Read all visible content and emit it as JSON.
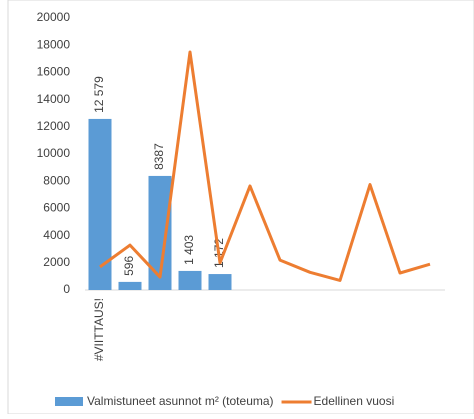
{
  "chart_data": {
    "type": "bar_line",
    "categories": [
      "#VIITTAUS!",
      null,
      null,
      null,
      null,
      null,
      null,
      null,
      null,
      null,
      null,
      null
    ],
    "series": [
      {
        "name": "Valmistuneet asunnot m² (toteuma)",
        "type": "bar",
        "color": "#5b9bd5",
        "values": [
          12579,
          596,
          8387,
          1403,
          1172,
          null,
          null,
          null,
          null,
          null,
          null,
          null
        ],
        "value_labels": [
          "12 579",
          "596",
          "8387",
          "1 403",
          "1 172",
          null,
          null,
          null,
          null,
          null,
          null,
          null
        ]
      },
      {
        "name": "Edellinen vuosi",
        "type": "line",
        "color": "#ed7d31",
        "values": [
          1700,
          3300,
          950,
          17500,
          2000,
          7650,
          2200,
          1300,
          700,
          7750,
          1250,
          1900
        ]
      }
    ],
    "ylim": [
      0,
      20000
    ],
    "yticks": [
      0,
      2000,
      4000,
      6000,
      8000,
      10000,
      12000,
      14000,
      16000,
      18000,
      20000
    ],
    "grid": false,
    "legend": "bottom"
  }
}
